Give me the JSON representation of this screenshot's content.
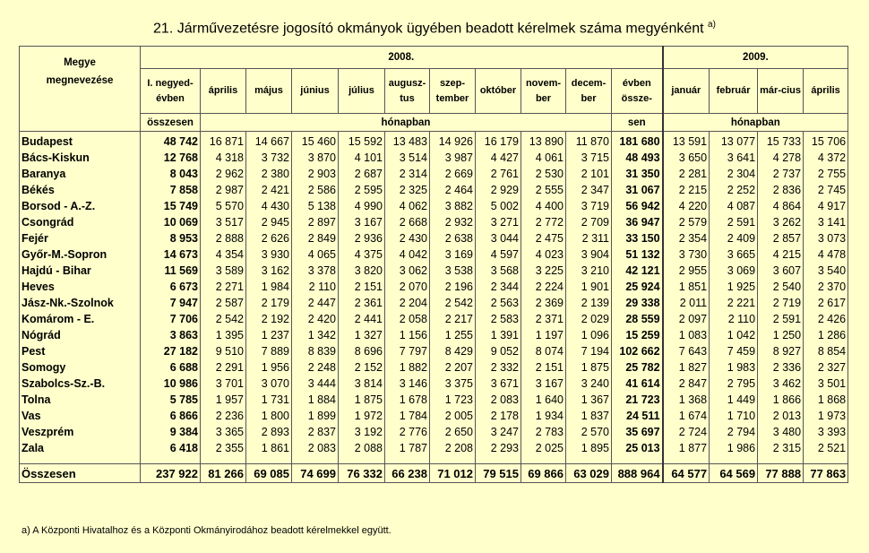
{
  "title": "21. Járművezetésre jogosító okmányok ügyében beadott kérelmek száma megyénként",
  "title_note": "a)",
  "header": {
    "county_label_1": "Megye",
    "county_label_2": "megnevezése",
    "year_2008": "2008.",
    "year_2009": "2009.",
    "q1_label": "I. negyed-évben",
    "q1_sub": "összesen",
    "months_2008": [
      "április",
      "május",
      "június",
      "július",
      "augusz-tus",
      "szep-tember",
      "október",
      "novem-ber",
      "decem-ber"
    ],
    "year_total_label": "évben össze-",
    "year_total_sub": "sen",
    "monthly_label": "hónapban",
    "monthly_label_2009": "hónapban",
    "months_2009": [
      "január",
      "február",
      "már-cius",
      "április"
    ]
  },
  "rows": [
    {
      "county": "Budapest",
      "q1": "48 742",
      "m": [
        "16 871",
        "14 667",
        "15 460",
        "15 592",
        "13 483",
        "14 926",
        "16 179",
        "13 890",
        "11 870"
      ],
      "total": "181 680",
      "m09": [
        "13 591",
        "13 077",
        "15 733",
        "15 706"
      ]
    },
    {
      "county": "Bács-Kiskun",
      "q1": "12 768",
      "m": [
        "4 318",
        "3 732",
        "3 870",
        "4 101",
        "3 514",
        "3 987",
        "4 427",
        "4 061",
        "3 715"
      ],
      "total": "48 493",
      "m09": [
        "3 650",
        "3 641",
        "4 278",
        "4 372"
      ]
    },
    {
      "county": "Baranya",
      "q1": "8 043",
      "m": [
        "2 962",
        "2 380",
        "2 903",
        "2 687",
        "2 314",
        "2 669",
        "2 761",
        "2 530",
        "2 101"
      ],
      "total": "31 350",
      "m09": [
        "2 281",
        "2 304",
        "2 737",
        "2 755"
      ]
    },
    {
      "county": "Békés",
      "q1": "7 858",
      "m": [
        "2 987",
        "2 421",
        "2 586",
        "2 595",
        "2 325",
        "2 464",
        "2 929",
        "2 555",
        "2 347"
      ],
      "total": "31 067",
      "m09": [
        "2 215",
        "2 252",
        "2 836",
        "2 745"
      ]
    },
    {
      "county": "Borsod - A.-Z.",
      "q1": "15 749",
      "m": [
        "5 570",
        "4 430",
        "5 138",
        "4 990",
        "4 062",
        "3 882",
        "5 002",
        "4 400",
        "3 719"
      ],
      "total": "56 942",
      "m09": [
        "4 220",
        "4 087",
        "4 864",
        "4 917"
      ]
    },
    {
      "county": "Csongrád",
      "q1": "10 069",
      "m": [
        "3 517",
        "2 945",
        "2 897",
        "3 167",
        "2 668",
        "2 932",
        "3 271",
        "2 772",
        "2 709"
      ],
      "total": "36 947",
      "m09": [
        "2 579",
        "2 591",
        "3 262",
        "3 141"
      ]
    },
    {
      "county": "Fejér",
      "q1": "8 953",
      "m": [
        "2 888",
        "2 626",
        "2 849",
        "2 936",
        "2 430",
        "2 638",
        "3 044",
        "2 475",
        "2 311"
      ],
      "total": "33 150",
      "m09": [
        "2 354",
        "2 409",
        "2 857",
        "3 073"
      ]
    },
    {
      "county": "Győr-M.-Sopron",
      "q1": "14 673",
      "m": [
        "4 354",
        "3 930",
        "4 065",
        "4 375",
        "4 042",
        "3 169",
        "4 597",
        "4 023",
        "3 904"
      ],
      "total": "51 132",
      "m09": [
        "3 730",
        "3 665",
        "4 215",
        "4 478"
      ]
    },
    {
      "county": "Hajdú - Bihar",
      "q1": "11 569",
      "m": [
        "3 589",
        "3 162",
        "3 378",
        "3 820",
        "3 062",
        "3 538",
        "3 568",
        "3 225",
        "3 210"
      ],
      "total": "42 121",
      "m09": [
        "2 955",
        "3 069",
        "3 607",
        "3 540"
      ]
    },
    {
      "county": "Heves",
      "q1": "6 673",
      "m": [
        "2 271",
        "1 984",
        "2 110",
        "2 151",
        "2 070",
        "2 196",
        "2 344",
        "2 224",
        "1 901"
      ],
      "total": "25 924",
      "m09": [
        "1 851",
        "1 925",
        "2 540",
        "2 370"
      ]
    },
    {
      "county": "Jász-Nk.-Szolnok",
      "q1": "7 947",
      "m": [
        "2 587",
        "2 179",
        "2 447",
        "2 361",
        "2 204",
        "2 542",
        "2 563",
        "2 369",
        "2 139"
      ],
      "total": "29 338",
      "m09": [
        "2 011",
        "2 221",
        "2 719",
        "2 617"
      ]
    },
    {
      "county": "Komárom - E.",
      "q1": "7 706",
      "m": [
        "2 542",
        "2 192",
        "2 420",
        "2 441",
        "2 058",
        "2 217",
        "2 583",
        "2 371",
        "2 029"
      ],
      "total": "28 559",
      "m09": [
        "2 097",
        "2 110",
        "2 591",
        "2 426"
      ]
    },
    {
      "county": "Nógrád",
      "q1": "3 863",
      "m": [
        "1 395",
        "1 237",
        "1 342",
        "1 327",
        "1 156",
        "1 255",
        "1 391",
        "1 197",
        "1 096"
      ],
      "total": "15 259",
      "m09": [
        "1 083",
        "1 042",
        "1 250",
        "1 286"
      ]
    },
    {
      "county": "Pest",
      "q1": "27 182",
      "m": [
        "9 510",
        "7 889",
        "8 839",
        "8 696",
        "7 797",
        "8 429",
        "9 052",
        "8 074",
        "7 194"
      ],
      "total": "102 662",
      "m09": [
        "7 643",
        "7 459",
        "8 927",
        "8 854"
      ]
    },
    {
      "county": "Somogy",
      "q1": "6 688",
      "m": [
        "2 291",
        "1 956",
        "2 248",
        "2 152",
        "1 882",
        "2 207",
        "2 332",
        "2 151",
        "1 875"
      ],
      "total": "25 782",
      "m09": [
        "1 827",
        "1 983",
        "2 336",
        "2 327"
      ]
    },
    {
      "county": "Szabolcs-Sz.-B.",
      "q1": "10 986",
      "m": [
        "3 701",
        "3 070",
        "3 444",
        "3 814",
        "3 146",
        "3 375",
        "3 671",
        "3 167",
        "3 240"
      ],
      "total": "41 614",
      "m09": [
        "2 847",
        "2 795",
        "3 462",
        "3 501"
      ]
    },
    {
      "county": "Tolna",
      "q1": "5 785",
      "m": [
        "1 957",
        "1 731",
        "1 884",
        "1 875",
        "1 678",
        "1 723",
        "2 083",
        "1 640",
        "1 367"
      ],
      "total": "21 723",
      "m09": [
        "1 368",
        "1 449",
        "1 866",
        "1 868"
      ]
    },
    {
      "county": "Vas",
      "q1": "6 866",
      "m": [
        "2 236",
        "1 800",
        "1 899",
        "1 972",
        "1 784",
        "2 005",
        "2 178",
        "1 934",
        "1 837"
      ],
      "total": "24 511",
      "m09": [
        "1 674",
        "1 710",
        "2 013",
        "1 973"
      ]
    },
    {
      "county": "Veszprém",
      "q1": "9 384",
      "m": [
        "3 365",
        "2 893",
        "2 837",
        "3 192",
        "2 776",
        "2 650",
        "3 247",
        "2 783",
        "2 570"
      ],
      "total": "35 697",
      "m09": [
        "2 724",
        "2 794",
        "3 480",
        "3 393"
      ]
    },
    {
      "county": "Zala",
      "q1": "6 418",
      "m": [
        "2 355",
        "1 861",
        "2 083",
        "2 088",
        "1 787",
        "2 208",
        "2 293",
        "2 025",
        "1 895"
      ],
      "total": "25 013",
      "m09": [
        "1 877",
        "1 986",
        "2 315",
        "2 521"
      ]
    }
  ],
  "total_row": {
    "county": "Összesen",
    "q1": "237 922",
    "m": [
      "81 266",
      "69 085",
      "74 699",
      "76 332",
      "66 238",
      "71 012",
      "79 515",
      "69 866",
      "63 029"
    ],
    "total": "888 964",
    "m09": [
      "64 577",
      "64 569",
      "77 888",
      "77 863"
    ]
  },
  "footnote": "a) A Központi Hivatalhoz és a Központi Okmányirodához beadott kérelmekkel együtt."
}
